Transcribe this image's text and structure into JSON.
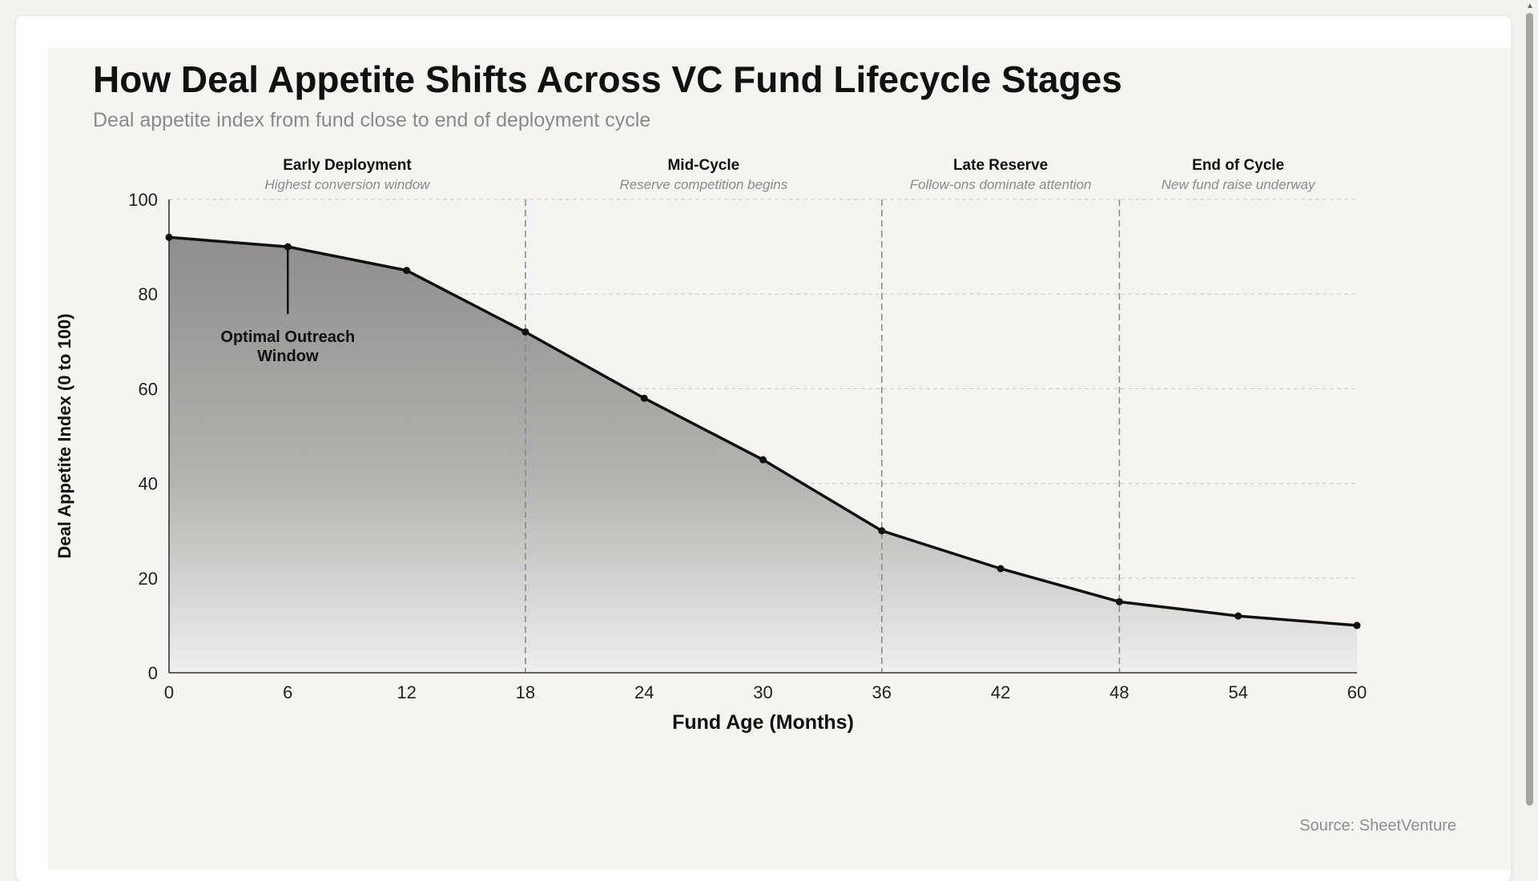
{
  "page": {
    "title": "How Deal Appetite Shifts Across VC Fund Lifecycle Stages",
    "subtitle": "Deal appetite index from fund close to end of deployment cycle",
    "source": "Source: SheetVenture"
  },
  "chart_data": {
    "type": "area",
    "xlabel": "Fund Age (Months)",
    "ylabel": "Deal Appetite Index (0 to 100)",
    "xlim": [
      0,
      60
    ],
    "ylim": [
      0,
      100
    ],
    "x_ticks": [
      0,
      6,
      12,
      18,
      24,
      30,
      36,
      42,
      48,
      54,
      60
    ],
    "y_ticks": [
      0,
      20,
      40,
      60,
      80,
      100
    ],
    "grid": true,
    "series": [
      {
        "x": [
          0,
          6,
          12,
          18,
          24,
          30,
          36,
          42,
          48,
          54,
          60
        ],
        "values": [
          92,
          90,
          85,
          72,
          58,
          45,
          30,
          22,
          15,
          12,
          10
        ]
      }
    ],
    "stage_boundaries": [
      18,
      36,
      48
    ],
    "stages": [
      {
        "name": "Early Deployment",
        "note": "Highest conversion window",
        "center_x": 9
      },
      {
        "name": "Mid-Cycle",
        "note": "Reserve competition begins",
        "center_x": 27
      },
      {
        "name": "Late Reserve",
        "note": "Follow-ons dominate attention",
        "center_x": 42
      },
      {
        "name": "End of Cycle",
        "note": "New fund raise underway",
        "center_x": 54
      }
    ],
    "annotations": [
      {
        "text_lines": [
          "Optimal Outreach",
          "Window"
        ],
        "x": 6,
        "y": 90
      }
    ],
    "colors": {
      "line": "#111111",
      "fill_top": "#8f8e8c",
      "fill_bottom": "#eeeeec",
      "grid": "#cfcfcf",
      "boundary": "#8c8c8c",
      "boundary_first": "#7a8ea3"
    }
  }
}
